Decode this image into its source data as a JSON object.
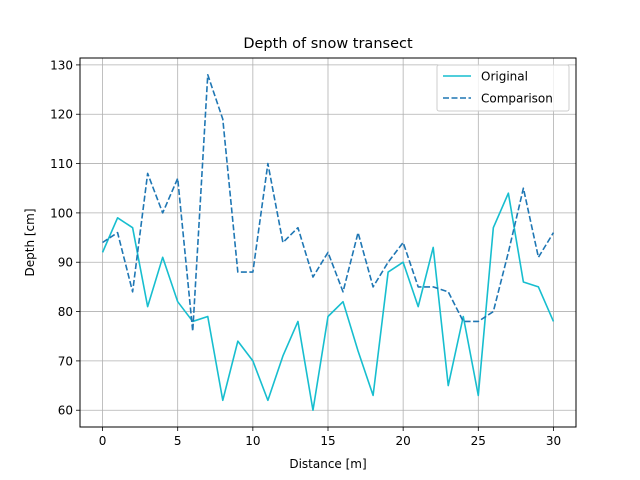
{
  "chart_data": {
    "type": "line",
    "title": "Depth of snow transect",
    "xlabel": "Distance [m]",
    "ylabel": "Depth [cm]",
    "xlim": [
      -1.5,
      31.5
    ],
    "ylim": [
      56.6,
      131.4
    ],
    "xticks": [
      0,
      5,
      10,
      15,
      20,
      25,
      30
    ],
    "yticks": [
      60,
      70,
      80,
      90,
      100,
      110,
      120,
      130
    ],
    "grid": true,
    "legend_position": "upper right",
    "x": [
      0,
      1,
      2,
      3,
      4,
      5,
      6,
      7,
      8,
      9,
      10,
      11,
      12,
      13,
      14,
      15,
      16,
      17,
      18,
      19,
      20,
      21,
      22,
      23,
      24,
      25,
      26,
      27,
      28,
      29,
      30
    ],
    "series": [
      {
        "name": "Original",
        "color": "#17becf",
        "style": "solid",
        "values": [
          92,
          99,
          97,
          81,
          91,
          82,
          78,
          79,
          62,
          74,
          70,
          62,
          71,
          78,
          60,
          79,
          82,
          72,
          63,
          88,
          90,
          81,
          93,
          65,
          79,
          63,
          97,
          104,
          86,
          85,
          78
        ]
      },
      {
        "name": "Comparison",
        "color": "#1f77b4",
        "style": "dashed",
        "values": [
          94,
          96,
          84,
          108,
          100,
          107,
          76,
          128,
          119,
          88,
          88,
          110,
          94,
          97,
          87,
          92,
          84,
          96,
          85,
          90,
          94,
          85,
          85,
          84,
          78,
          78,
          80,
          92,
          105,
          91,
          96
        ]
      }
    ]
  }
}
